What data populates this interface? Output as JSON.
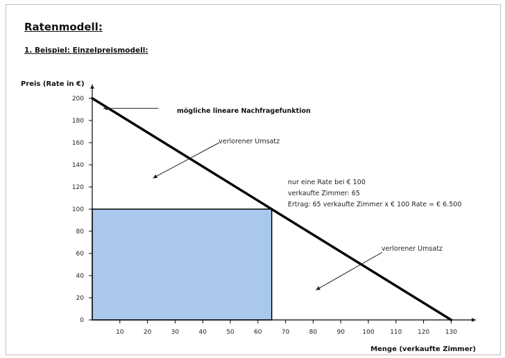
{
  "page": {
    "title": "Ratenmodell:",
    "subtitle": "1. Beispiel: Einzelpreismodell:"
  },
  "chart_data": {
    "type": "line",
    "xlabel": "Menge (verkaufte Zimmer)",
    "ylabel": "Preis (Rate in €)",
    "xlim": [
      0,
      135
    ],
    "ylim": [
      0,
      205
    ],
    "x_ticks": [
      10,
      20,
      30,
      40,
      50,
      60,
      70,
      80,
      90,
      100,
      110,
      120,
      130
    ],
    "y_ticks": [
      0,
      20,
      40,
      60,
      80,
      100,
      120,
      140,
      160,
      180,
      200
    ],
    "demand_line": {
      "points": [
        [
          0,
          200
        ],
        [
          130,
          0
        ]
      ],
      "color": "#000000"
    },
    "revenue_rect": {
      "x": [
        0,
        65
      ],
      "y": [
        0,
        100
      ],
      "color": "#a9c8ec"
    },
    "annotations": {
      "demand_label": {
        "text": "mögliche lineare Nachfragefunktion",
        "arrow_to": [
          4,
          191
        ],
        "arrow_from": [
          24,
          191
        ]
      },
      "lost_upper": {
        "text": "verlorener Umsatz",
        "label_at": [
          37,
          162
        ],
        "arrow_from": [
          46,
          160
        ],
        "arrow_to": [
          22,
          128
        ]
      },
      "info_lines": [
        "nur eine Rate bei € 100",
        "verkaufte Zimmer: 65",
        "Ertrag: 65 verkaufte Zimmer x € 100 Rate = € 6.500"
      ],
      "lost_lower": {
        "text": "verlorener Umsatz",
        "label_at": [
          102,
          62
        ],
        "arrow_from": [
          105,
          61
        ],
        "arrow_to": [
          81,
          27
        ]
      }
    },
    "grid": false,
    "legend": "none"
  },
  "colors": {
    "frame_border": "#bdbdbd",
    "axis": "#000000",
    "revenue_fill": "#a9c8ec"
  }
}
